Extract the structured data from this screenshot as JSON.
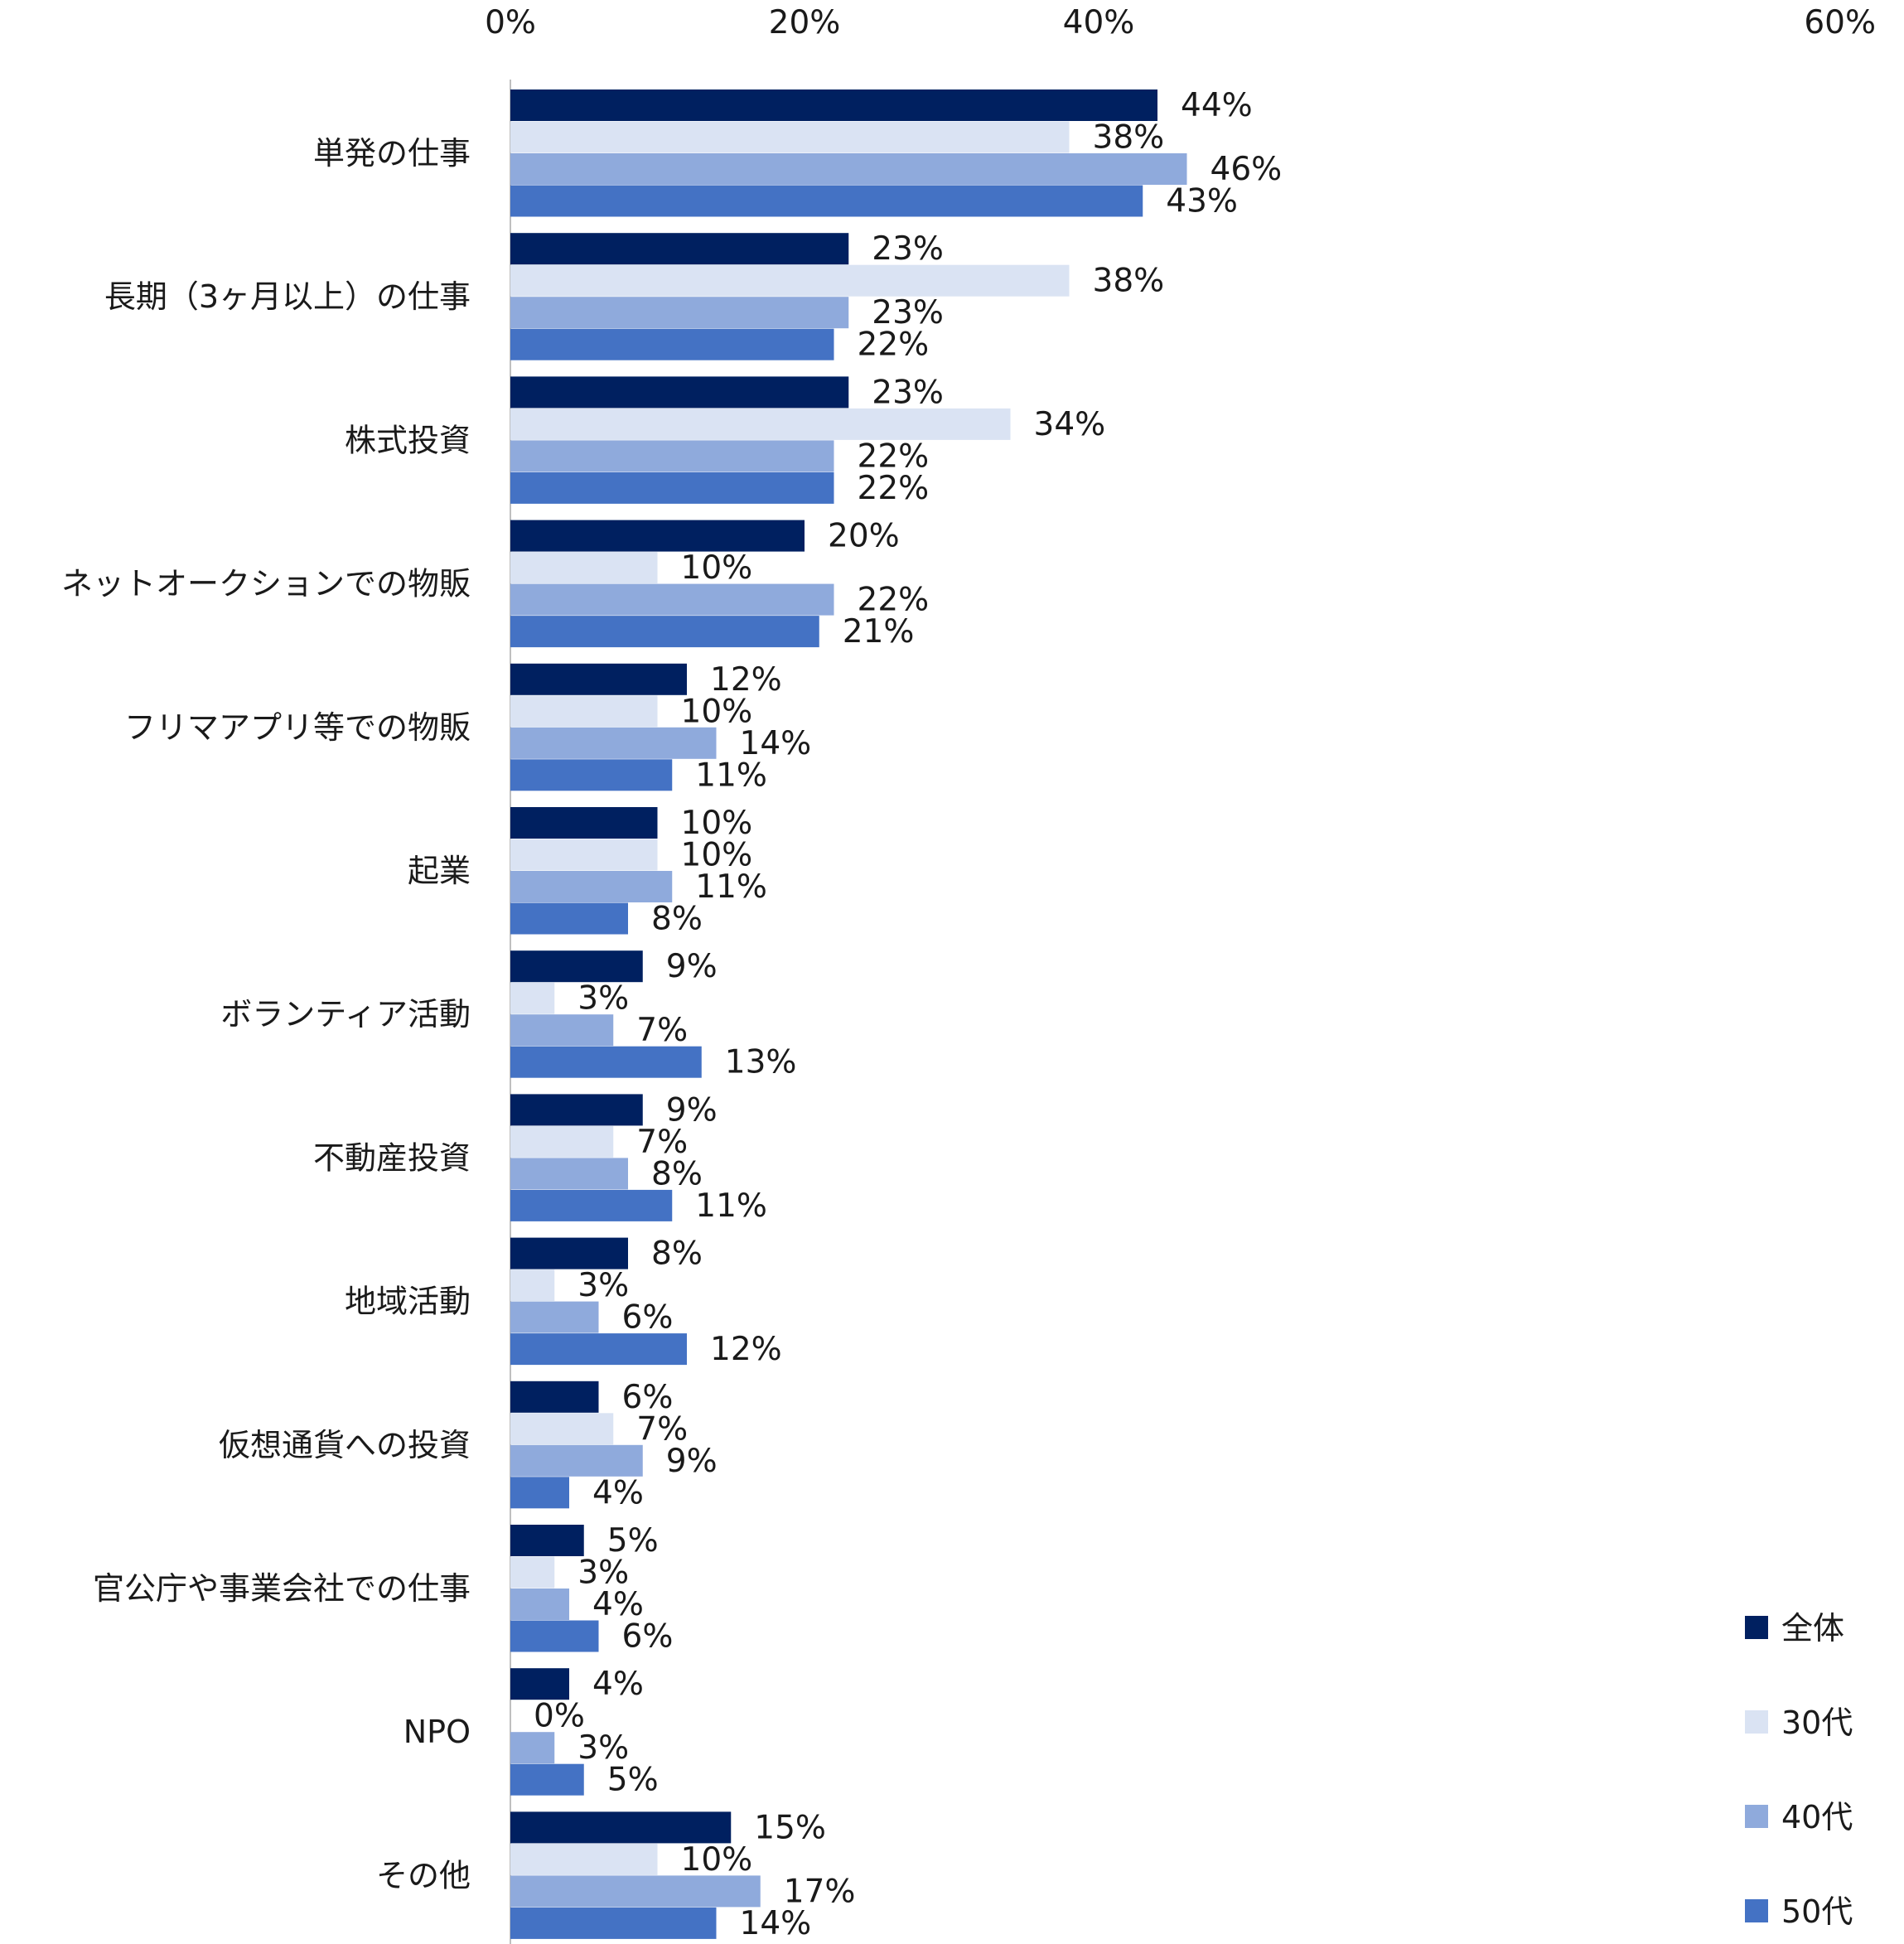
{
  "chart_data": {
    "type": "bar",
    "orientation": "horizontal",
    "categories": [
      "単発の仕事",
      "長期（3ヶ月以上）の仕事",
      "株式投資",
      "ネットオークションでの物販",
      "フリマアプリ等での物販",
      "起業",
      "ボランティア活動",
      "不動産投資",
      "地域活動",
      "仮想通貨への投資",
      "官公庁や事業会社での仕事",
      "NPO",
      "その他"
    ],
    "series": [
      {
        "name": "全体",
        "color": "#002060",
        "values": [
          44,
          23,
          23,
          20,
          12,
          10,
          9,
          9,
          8,
          6,
          5,
          4,
          15
        ]
      },
      {
        "name": "30代",
        "color": "#dae3f3",
        "values": [
          38,
          38,
          34,
          10,
          10,
          10,
          3,
          7,
          3,
          7,
          3,
          0,
          10
        ]
      },
      {
        "name": "40代",
        "color": "#8faadc",
        "values": [
          46,
          23,
          22,
          22,
          14,
          11,
          7,
          8,
          6,
          9,
          4,
          3,
          17
        ]
      },
      {
        "name": "50代",
        "color": "#4472c4",
        "values": [
          43,
          22,
          22,
          21,
          11,
          8,
          13,
          11,
          12,
          4,
          6,
          5,
          14
        ]
      }
    ],
    "xticks": [
      "0%",
      "20%",
      "40%",
      "60%"
    ],
    "xlim": [
      0,
      60
    ],
    "value_suffix": "%",
    "grid": false,
    "legend_position": "bottom-right"
  }
}
